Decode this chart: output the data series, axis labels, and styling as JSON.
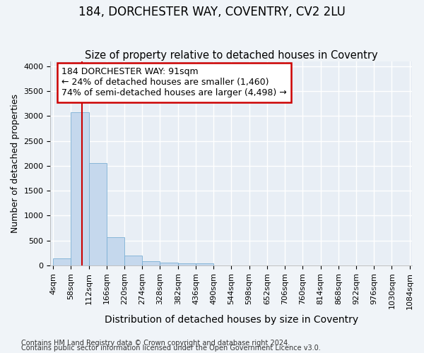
{
  "title1": "184, DORCHESTER WAY, COVENTRY, CV2 2LU",
  "title2": "Size of property relative to detached houses in Coventry",
  "xlabel": "Distribution of detached houses by size in Coventry",
  "ylabel": "Number of detached properties",
  "footer1": "Contains HM Land Registry data © Crown copyright and database right 2024.",
  "footer2": "Contains public sector information licensed under the Open Government Licence v3.0.",
  "bar_edges": [
    4,
    58,
    112,
    166,
    220,
    274,
    328,
    382,
    436,
    490,
    544,
    598,
    652,
    706,
    760,
    814,
    868,
    922,
    976,
    1030,
    1084
  ],
  "bar_heights": [
    145,
    3070,
    2060,
    560,
    200,
    80,
    55,
    40,
    40,
    0,
    0,
    0,
    0,
    0,
    0,
    0,
    0,
    0,
    0,
    0
  ],
  "bar_color": "#c5d8ed",
  "bar_edgecolor": "#7aafd4",
  "vline_x": 91,
  "vline_color": "#cc0000",
  "annotation_text": "184 DORCHESTER WAY: 91sqm\n← 24% of detached houses are smaller (1,460)\n74% of semi-detached houses are larger (4,498) →",
  "annotation_box_facecolor": "#ffffff",
  "annotation_box_edgecolor": "#cc0000",
  "ylim": [
    0,
    4100
  ],
  "yticks": [
    0,
    500,
    1000,
    1500,
    2000,
    2500,
    3000,
    3500,
    4000
  ],
  "fig_bg_color": "#f0f4f8",
  "plot_bg_color": "#e8eef5",
  "grid_color": "#ffffff",
  "title1_fontsize": 12,
  "title2_fontsize": 10.5,
  "xlabel_fontsize": 10,
  "ylabel_fontsize": 9,
  "tick_fontsize": 8,
  "annotation_fontsize": 9,
  "footer_fontsize": 7
}
